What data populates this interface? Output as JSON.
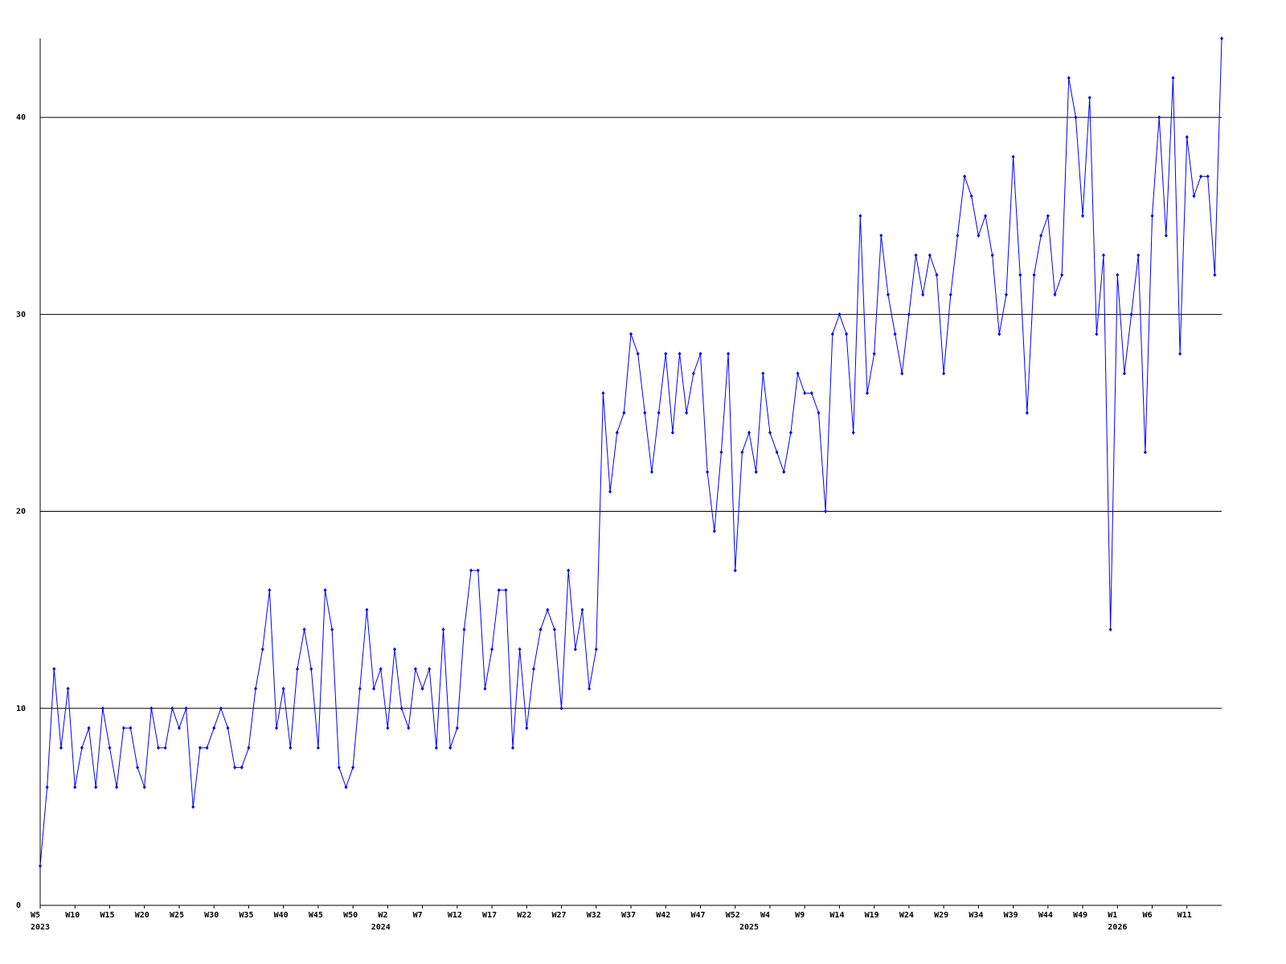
{
  "chart_data": {
    "type": "line",
    "categories": [
      "W5",
      null,
      null,
      null,
      null,
      "W10",
      null,
      null,
      null,
      null,
      "W15",
      null,
      null,
      null,
      null,
      "W20",
      null,
      null,
      null,
      null,
      "W25",
      null,
      null,
      null,
      null,
      "W30",
      null,
      null,
      null,
      null,
      "W35",
      null,
      null,
      null,
      null,
      "W40",
      null,
      null,
      null,
      null,
      "W45",
      null,
      null,
      null,
      null,
      "W50",
      null,
      null,
      null,
      null,
      "W2",
      null,
      null,
      null,
      null,
      "W7",
      null,
      null,
      null,
      null,
      "W12",
      null,
      null,
      null,
      null,
      "W17",
      null,
      null,
      null,
      null,
      "W22",
      null,
      null,
      null,
      null,
      "W27",
      null,
      null,
      null,
      null,
      "W32",
      null,
      null,
      null,
      null,
      "W37",
      null,
      null,
      null,
      null,
      "W42",
      null,
      null,
      null,
      null,
      "W47",
      null,
      null,
      null,
      null,
      "W52",
      null,
      null,
      null,
      null,
      "W4",
      null,
      null,
      null,
      null,
      "W9",
      null,
      null,
      null,
      null,
      "W14",
      null,
      null,
      null,
      null,
      "W19",
      null,
      null,
      null,
      null,
      "W24",
      null,
      null,
      null,
      null,
      "W29",
      null,
      null,
      null,
      null,
      "W34",
      null,
      null,
      null,
      null,
      "W39",
      null,
      null,
      null,
      null,
      "W44",
      null,
      null,
      null,
      null,
      "W49",
      null,
      null,
      null,
      null,
      "W1",
      null,
      null,
      null,
      null,
      "W6",
      null,
      null,
      null,
      null,
      "W11",
      null,
      null,
      null,
      null,
      null
    ],
    "years": [
      "2023",
      null,
      null,
      null,
      null,
      null,
      null,
      null,
      null,
      null,
      null,
      null,
      null,
      null,
      null,
      null,
      null,
      null,
      null,
      null,
      null,
      null,
      null,
      null,
      null,
      null,
      null,
      null,
      null,
      null,
      null,
      null,
      null,
      null,
      null,
      null,
      null,
      null,
      null,
      null,
      null,
      null,
      null,
      null,
      null,
      null,
      null,
      null,
      null,
      "2024",
      null,
      null,
      null,
      null,
      null,
      null,
      null,
      null,
      null,
      null,
      null,
      null,
      null,
      null,
      null,
      null,
      null,
      null,
      null,
      null,
      null,
      null,
      null,
      null,
      null,
      null,
      null,
      null,
      null,
      null,
      null,
      null,
      null,
      null,
      null,
      null,
      null,
      null,
      null,
      null,
      null,
      null,
      null,
      null,
      null,
      null,
      null,
      null,
      null,
      null,
      null,
      null,
      "2025",
      null,
      null,
      null,
      null,
      null,
      null,
      null,
      null,
      null,
      null,
      null,
      null,
      null,
      null,
      null,
      null,
      null,
      null,
      null,
      null,
      null,
      null,
      null,
      null,
      null,
      null,
      null,
      null,
      null,
      null,
      null,
      null,
      null,
      null,
      null,
      null,
      null,
      null,
      null,
      null,
      null,
      null,
      null,
      null,
      null,
      null,
      null,
      null,
      null,
      null,
      null,
      null,
      "2026",
      null,
      null,
      null,
      null,
      null,
      null,
      null,
      null,
      null,
      null,
      null,
      null,
      null,
      null,
      null
    ],
    "series": [
      {
        "color": "#0000ff",
        "values": [
          2,
          6,
          12,
          8,
          11,
          6,
          8,
          9,
          6,
          10,
          8,
          6,
          9,
          9,
          7,
          6,
          10,
          8,
          8,
          10,
          9,
          10,
          5,
          8,
          8,
          9,
          10,
          9,
          7,
          7,
          8,
          11,
          13,
          16,
          9,
          11,
          8,
          12,
          14,
          12,
          8,
          16,
          14,
          7,
          6,
          7,
          11,
          15,
          11,
          12,
          9,
          13,
          10,
          9,
          12,
          11,
          12,
          8,
          14,
          8,
          9,
          14,
          17,
          17,
          11,
          13,
          16,
          16,
          8,
          13,
          9,
          12,
          14,
          15,
          14,
          10,
          17,
          13,
          15,
          11,
          13,
          26,
          21,
          24,
          25,
          29,
          28,
          25,
          22,
          25,
          28,
          24,
          28,
          25,
          27,
          28,
          22,
          19,
          23,
          28,
          17,
          23,
          24,
          22,
          27,
          24,
          23,
          22,
          24,
          27,
          26,
          26,
          25,
          20,
          29,
          30,
          29,
          24,
          35,
          26,
          28,
          34,
          31,
          29,
          27,
          30,
          33,
          31,
          33,
          32,
          27,
          31,
          34,
          37,
          36,
          34,
          35,
          33,
          29,
          31,
          38,
          32,
          25,
          32,
          34,
          35,
          31,
          32,
          42,
          40,
          35,
          41,
          29,
          33,
          14,
          32,
          27,
          30,
          33,
          23,
          35,
          40,
          34,
          42,
          28,
          39,
          36,
          37,
          37,
          32,
          44
        ]
      }
    ],
    "ylim": [
      0,
      44
    ],
    "yticks": [
      0,
      10,
      20,
      30,
      40
    ],
    "grid": true
  }
}
